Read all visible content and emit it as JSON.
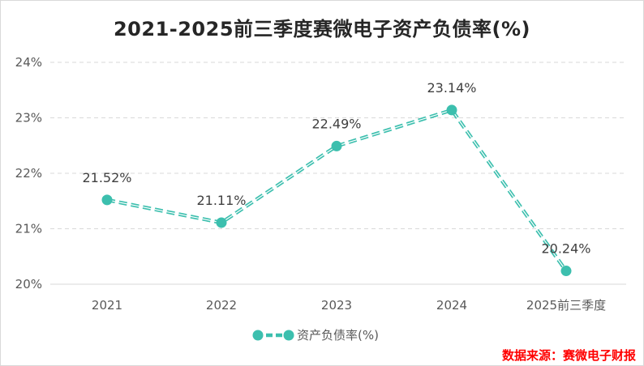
{
  "chart_data": {
    "type": "line",
    "title": "2021-2025前三季度赛微电子资产负债率(%)",
    "categories": [
      "2021",
      "2022",
      "2023",
      "2024",
      "2025前三季度"
    ],
    "series": [
      {
        "name": "资产负债率(%)",
        "values": [
          21.52,
          21.11,
          22.49,
          23.14,
          20.24
        ],
        "labels": [
          "21.52%",
          "21.11%",
          "22.49%",
          "23.14%",
          "20.24%"
        ]
      }
    ],
    "y_ticks": [
      "20%",
      "21%",
      "22%",
      "23%",
      "24%"
    ],
    "ylim": [
      20,
      24
    ],
    "grid": true,
    "line_style": "dashed",
    "legend_position": "bottom",
    "colors": {
      "series": "#3cbfae",
      "grid": "#d9d9d9",
      "source": "#ff0000"
    }
  },
  "source_note": "数据来源：赛微电子财报"
}
